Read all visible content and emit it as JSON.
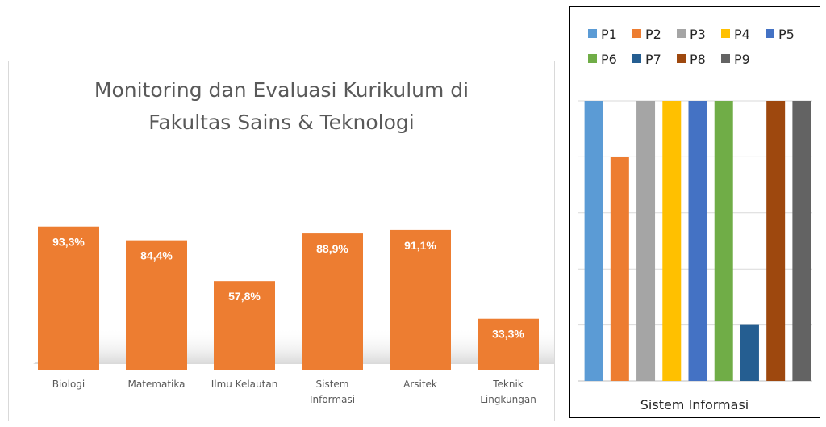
{
  "chart_data": [
    {
      "type": "bar",
      "title": "Monitoring dan Evaluasi Kurikulum di\nFakultas Sains & Teknologi",
      "categories": [
        "Biologi",
        "Matematika",
        "Ilmu Kelautan",
        "Sistem\nInformasi",
        "Arsitek",
        "Teknik\nLingkungan"
      ],
      "values": [
        93.3,
        84.4,
        57.8,
        88.9,
        91.1,
        33.3
      ],
      "data_labels": [
        "93,3%",
        "84,4%",
        "57,8%",
        "88,9%",
        "91,1%",
        "33,3%"
      ],
      "ylim": [
        0,
        100
      ],
      "grid": false,
      "bar_color": "#ed7d31"
    },
    {
      "type": "bar",
      "xlabel": "Sistem Informasi",
      "series": [
        {
          "name": "P1",
          "values": [
            5
          ],
          "color": "#5b9bd5"
        },
        {
          "name": "P2",
          "values": [
            4
          ],
          "color": "#ed7d31"
        },
        {
          "name": "P3",
          "values": [
            5
          ],
          "color": "#a5a5a5"
        },
        {
          "name": "P4",
          "values": [
            5
          ],
          "color": "#ffc000"
        },
        {
          "name": "P5",
          "values": [
            5
          ],
          "color": "#4472c4"
        },
        {
          "name": "P6",
          "values": [
            5
          ],
          "color": "#70ad47"
        },
        {
          "name": "P7",
          "values": [
            1
          ],
          "color": "#255e91"
        },
        {
          "name": "P8",
          "values": [
            5
          ],
          "color": "#9e480e"
        },
        {
          "name": "P9",
          "values": [
            5
          ],
          "color": "#636363"
        }
      ],
      "ylim": [
        0,
        5
      ],
      "grid": true,
      "legend": "top"
    }
  ]
}
